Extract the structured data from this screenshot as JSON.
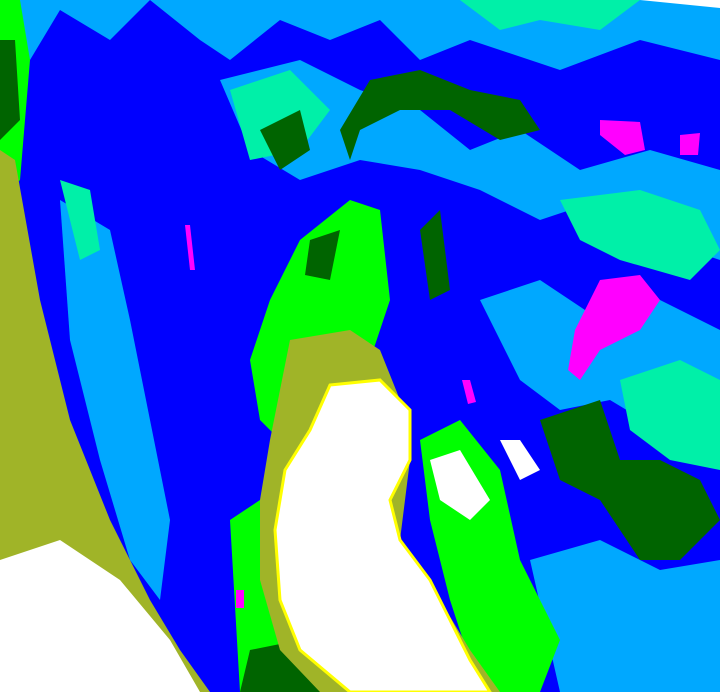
{
  "image": {
    "kind": "false-color satellite cloud image",
    "palette": {
      "deep": "#0000ff",
      "mid": "#00a8ff",
      "teal": "#00f0a8",
      "green": "#00ff00",
      "darkgreen": "#006400",
      "olive": "#a0b428",
      "yellow": "#ffff00",
      "white": "#ffffff",
      "magenta": "#ff00ff"
    }
  }
}
